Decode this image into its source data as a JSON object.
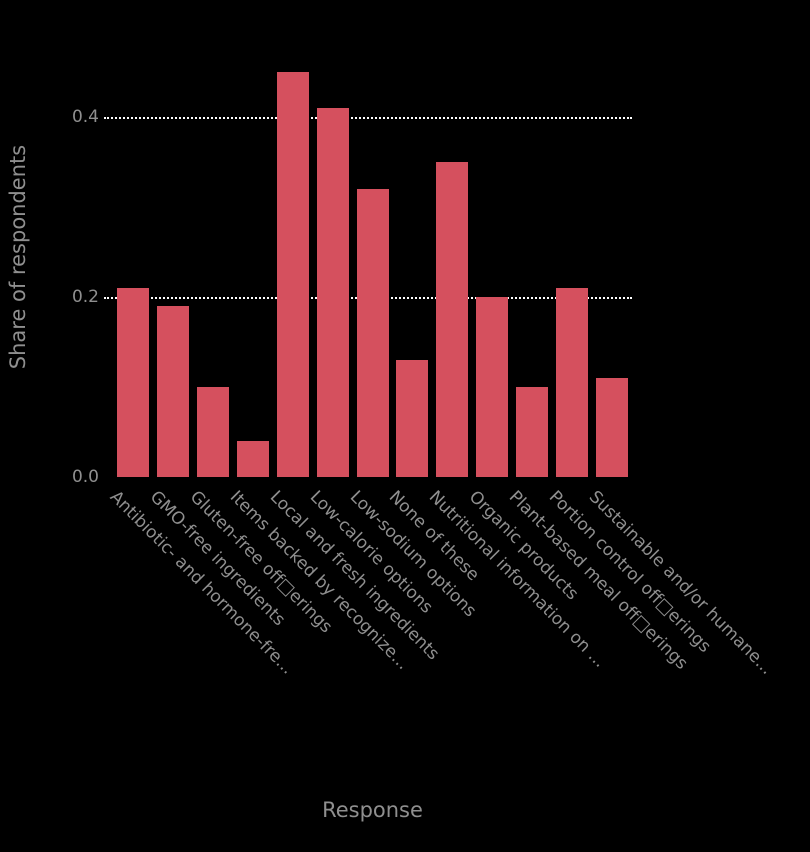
{
  "chart_data": {
    "type": "bar",
    "title": "",
    "xlabel": "Response",
    "ylabel": "Share of respondents",
    "ylim": [
      0.0,
      0.5
    ],
    "yticks": [
      0.0,
      0.2,
      0.4
    ],
    "ytick_labels": [
      "0.0",
      "0.2",
      "0.4"
    ],
    "gridlines": [
      0.2,
      0.4
    ],
    "legend": "none",
    "grid": "dotted horizontal at 0.2 and 0.4",
    "colors": {
      "background": "#000000",
      "bar": "#d5505e",
      "text": "#8f8f8f",
      "gridline": "#ffffff"
    },
    "categories": [
      "Antibiotic- and hormone-fre...",
      "GMO-free ingredients",
      "Gluten-free off□erings",
      "Items backed by recognize...",
      "Local and fresh ingredients",
      "Low-calorie options",
      "Low-sodium options",
      "None of these",
      "Nutritional information on ...",
      "Organic products",
      "Plant-based meal off□erings",
      "Portion control off□erings",
      "Sustainable and/or humane..."
    ],
    "values": [
      0.21,
      0.19,
      0.1,
      0.04,
      0.45,
      0.41,
      0.32,
      0.13,
      0.35,
      0.2,
      0.1,
      0.21,
      0.11
    ]
  }
}
